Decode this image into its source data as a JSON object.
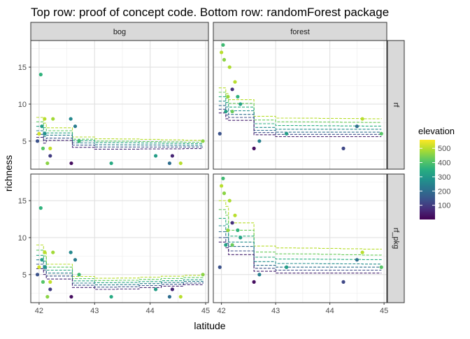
{
  "chart_data": {
    "type": "scatter",
    "title": "Top row: proof of concept code. Bottom row: randomForest package",
    "xlabel": "latitude",
    "ylabel": "richness",
    "xlim": [
      41.85,
      45.05
    ],
    "ylim": [
      1.2,
      18.6
    ],
    "x_ticks": [
      42,
      43,
      44,
      45
    ],
    "y_ticks": [
      5,
      10,
      15
    ],
    "grid": true,
    "columns": [
      "bog",
      "forest"
    ],
    "rows": [
      "rf",
      "rf_pkg"
    ],
    "legend": {
      "title": "elevation",
      "placement": "right",
      "range": [
        0,
        560
      ],
      "ticks": [
        100,
        200,
        300,
        400,
        500
      ],
      "colors": [
        "#440154",
        "#472c7a",
        "#3b528b",
        "#2c728e",
        "#21918c",
        "#28ae80",
        "#5ec962",
        "#addc30",
        "#fde725"
      ]
    },
    "panels": [
      {
        "column": "bog",
        "row": "rf",
        "points": [
          {
            "x": 41.97,
            "y": 5.0,
            "elevation": 420
          },
          {
            "x": 42.0,
            "y": 6.0,
            "elevation": 40
          },
          {
            "x": 42.03,
            "y": 14.0,
            "elevation": 200
          },
          {
            "x": 42.05,
            "y": 7.0,
            "elevation": 250
          },
          {
            "x": 42.07,
            "y": 4.0,
            "elevation": 150
          },
          {
            "x": 42.1,
            "y": 8.0,
            "elevation": 60
          },
          {
            "x": 42.1,
            "y": 6.0,
            "elevation": 280
          },
          {
            "x": 42.15,
            "y": 2.0,
            "elevation": 100
          },
          {
            "x": 42.2,
            "y": 4.0,
            "elevation": 50
          },
          {
            "x": 42.2,
            "y": 3.0,
            "elevation": 460
          },
          {
            "x": 42.25,
            "y": 8.0,
            "elevation": 80
          },
          {
            "x": 42.57,
            "y": 8.0,
            "elevation": 300
          },
          {
            "x": 42.58,
            "y": 2.0,
            "elevation": 540
          },
          {
            "x": 42.65,
            "y": 7.0,
            "elevation": 330
          },
          {
            "x": 42.72,
            "y": 5.0,
            "elevation": 180
          },
          {
            "x": 43.3,
            "y": 2.0,
            "elevation": 220
          },
          {
            "x": 44.1,
            "y": 3.0,
            "elevation": 250
          },
          {
            "x": 44.35,
            "y": 2.0,
            "elevation": 360
          },
          {
            "x": 44.4,
            "y": 3.0,
            "elevation": 500
          },
          {
            "x": 44.55,
            "y": 2.0,
            "elevation": 60
          },
          {
            "x": 44.95,
            "y": 5.0,
            "elevation": 100
          }
        ],
        "lines": [
          {
            "elevation": 60,
            "y": [
              8.2,
              6.8,
              5.3,
              5.05
            ]
          },
          {
            "elevation": 140,
            "y": [
              7.6,
              6.4,
              5.0,
              4.8
            ]
          },
          {
            "elevation": 230,
            "y": [
              7.0,
              6.1,
              4.8,
              4.6
            ]
          },
          {
            "elevation": 320,
            "y": [
              6.4,
              5.8,
              4.5,
              4.4
            ]
          },
          {
            "elevation": 410,
            "y": [
              5.9,
              5.4,
              4.2,
              4.2
            ]
          },
          {
            "elevation": 500,
            "y": [
              5.5,
              5.1,
              3.9,
              4.0
            ]
          }
        ]
      },
      {
        "column": "forest",
        "row": "rf",
        "points": [
          {
            "x": 41.97,
            "y": 6.0,
            "elevation": 420
          },
          {
            "x": 42.0,
            "y": 17.0,
            "elevation": 60
          },
          {
            "x": 42.03,
            "y": 18.0,
            "elevation": 180
          },
          {
            "x": 42.05,
            "y": 16.0,
            "elevation": 100
          },
          {
            "x": 42.08,
            "y": 9.0,
            "elevation": 240
          },
          {
            "x": 42.12,
            "y": 11.0,
            "elevation": 90
          },
          {
            "x": 42.15,
            "y": 15.0,
            "elevation": 70
          },
          {
            "x": 42.2,
            "y": 12.0,
            "elevation": 480
          },
          {
            "x": 42.2,
            "y": 9.0,
            "elevation": 130
          },
          {
            "x": 42.25,
            "y": 13.0,
            "elevation": 60
          },
          {
            "x": 42.3,
            "y": 11.0,
            "elevation": 200
          },
          {
            "x": 42.35,
            "y": 10.0,
            "elevation": 240
          },
          {
            "x": 42.6,
            "y": 4.0,
            "elevation": 540
          },
          {
            "x": 42.7,
            "y": 5.0,
            "elevation": 320
          },
          {
            "x": 43.2,
            "y": 6.0,
            "elevation": 250
          },
          {
            "x": 44.25,
            "y": 4.0,
            "elevation": 440
          },
          {
            "x": 44.5,
            "y": 7.0,
            "elevation": 360
          },
          {
            "x": 44.6,
            "y": 8.0,
            "elevation": 60
          },
          {
            "x": 44.95,
            "y": 6.0,
            "elevation": 150
          }
        ],
        "lines": [
          {
            "elevation": 60,
            "y": [
              12.2,
              10.6,
              8.1,
              8.0
            ]
          },
          {
            "elevation": 130,
            "y": [
              11.6,
              10.1,
              7.6,
              7.5
            ]
          },
          {
            "elevation": 210,
            "y": [
              11.0,
              9.6,
              7.1,
              7.0
            ]
          },
          {
            "elevation": 290,
            "y": [
              10.4,
              9.1,
              6.6,
              6.6
            ]
          },
          {
            "elevation": 360,
            "y": [
              9.8,
              8.6,
              6.2,
              6.2
            ]
          },
          {
            "elevation": 430,
            "y": [
              9.3,
              8.2,
              5.9,
              5.9
            ]
          },
          {
            "elevation": 510,
            "y": [
              8.8,
              7.8,
              5.6,
              5.6
            ]
          }
        ]
      },
      {
        "column": "bog",
        "row": "rf_pkg",
        "points": [
          {
            "x": 41.97,
            "y": 5.0,
            "elevation": 420
          },
          {
            "x": 42.0,
            "y": 6.0,
            "elevation": 40
          },
          {
            "x": 42.03,
            "y": 14.0,
            "elevation": 200
          },
          {
            "x": 42.05,
            "y": 7.0,
            "elevation": 250
          },
          {
            "x": 42.07,
            "y": 4.0,
            "elevation": 150
          },
          {
            "x": 42.1,
            "y": 8.0,
            "elevation": 60
          },
          {
            "x": 42.1,
            "y": 6.0,
            "elevation": 280
          },
          {
            "x": 42.15,
            "y": 2.0,
            "elevation": 100
          },
          {
            "x": 42.2,
            "y": 4.0,
            "elevation": 50
          },
          {
            "x": 42.2,
            "y": 3.0,
            "elevation": 460
          },
          {
            "x": 42.25,
            "y": 8.0,
            "elevation": 80
          },
          {
            "x": 42.57,
            "y": 8.0,
            "elevation": 300
          },
          {
            "x": 42.58,
            "y": 2.0,
            "elevation": 540
          },
          {
            "x": 42.65,
            "y": 7.0,
            "elevation": 330
          },
          {
            "x": 42.72,
            "y": 5.0,
            "elevation": 180
          },
          {
            "x": 43.3,
            "y": 2.0,
            "elevation": 220
          },
          {
            "x": 44.1,
            "y": 3.0,
            "elevation": 250
          },
          {
            "x": 44.35,
            "y": 2.0,
            "elevation": 360
          },
          {
            "x": 44.4,
            "y": 3.0,
            "elevation": 500
          },
          {
            "x": 44.55,
            "y": 2.0,
            "elevation": 60
          },
          {
            "x": 44.95,
            "y": 5.0,
            "elevation": 100
          }
        ],
        "lines": [
          {
            "elevation": 60,
            "y": [
              9.0,
              6.4,
              4.5,
              5.0
            ]
          },
          {
            "elevation": 140,
            "y": [
              8.3,
              6.0,
              4.2,
              4.7
            ]
          },
          {
            "elevation": 230,
            "y": [
              7.6,
              5.6,
              3.9,
              4.4
            ]
          },
          {
            "elevation": 320,
            "y": [
              7.0,
              5.2,
              3.6,
              4.2
            ]
          },
          {
            "elevation": 410,
            "y": [
              6.4,
              4.8,
              3.3,
              4.0
            ]
          },
          {
            "elevation": 500,
            "y": [
              5.8,
              4.4,
              3.0,
              3.8
            ]
          }
        ]
      },
      {
        "column": "forest",
        "row": "rf_pkg",
        "points": [
          {
            "x": 41.97,
            "y": 6.0,
            "elevation": 420
          },
          {
            "x": 42.0,
            "y": 17.0,
            "elevation": 60
          },
          {
            "x": 42.03,
            "y": 18.0,
            "elevation": 180
          },
          {
            "x": 42.05,
            "y": 16.0,
            "elevation": 100
          },
          {
            "x": 42.08,
            "y": 9.0,
            "elevation": 240
          },
          {
            "x": 42.12,
            "y": 11.0,
            "elevation": 90
          },
          {
            "x": 42.15,
            "y": 15.0,
            "elevation": 70
          },
          {
            "x": 42.2,
            "y": 12.0,
            "elevation": 480
          },
          {
            "x": 42.2,
            "y": 9.0,
            "elevation": 130
          },
          {
            "x": 42.25,
            "y": 13.0,
            "elevation": 60
          },
          {
            "x": 42.3,
            "y": 11.0,
            "elevation": 200
          },
          {
            "x": 42.35,
            "y": 10.0,
            "elevation": 240
          },
          {
            "x": 42.6,
            "y": 4.0,
            "elevation": 540
          },
          {
            "x": 42.7,
            "y": 5.0,
            "elevation": 320
          },
          {
            "x": 43.2,
            "y": 6.0,
            "elevation": 250
          },
          {
            "x": 44.25,
            "y": 4.0,
            "elevation": 440
          },
          {
            "x": 44.5,
            "y": 7.0,
            "elevation": 360
          },
          {
            "x": 44.6,
            "y": 8.0,
            "elevation": 60
          },
          {
            "x": 44.95,
            "y": 6.0,
            "elevation": 150
          }
        ],
        "lines": [
          {
            "elevation": 60,
            "y": [
              15.0,
              12.0,
              8.6,
              8.4
            ]
          },
          {
            "elevation": 130,
            "y": [
              13.8,
              11.0,
              7.8,
              7.6
            ]
          },
          {
            "elevation": 210,
            "y": [
              12.6,
              10.2,
              7.1,
              7.0
            ]
          },
          {
            "elevation": 290,
            "y": [
              11.6,
              9.4,
              6.5,
              6.4
            ]
          },
          {
            "elevation": 360,
            "y": [
              10.8,
              8.8,
              6.0,
              6.0
            ]
          },
          {
            "elevation": 430,
            "y": [
              10.0,
              8.2,
              5.6,
              5.6
            ]
          },
          {
            "elevation": 510,
            "y": [
              9.4,
              7.7,
              5.2,
              5.2
            ]
          }
        ]
      }
    ]
  }
}
